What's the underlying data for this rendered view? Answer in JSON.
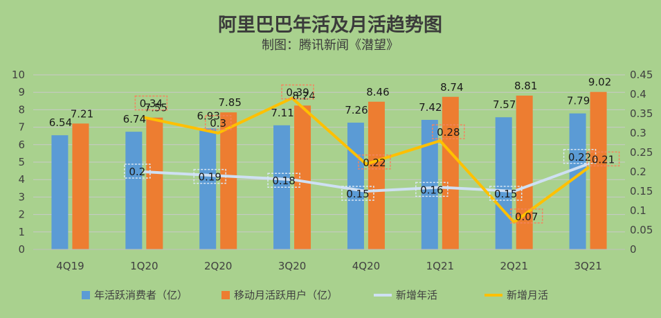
{
  "chart_data": {
    "type": "bar",
    "title": "阿里巴巴年活及月活趋势图",
    "subtitle": "制图：腾讯新闻《潜望》",
    "categories": [
      "4Q19",
      "1Q20",
      "2Q20",
      "3Q20",
      "4Q20",
      "1Q21",
      "2Q21",
      "3Q21"
    ],
    "ylim": [
      0,
      10
    ],
    "yticks": [
      "0",
      "1",
      "2",
      "3",
      "4",
      "5",
      "6",
      "7",
      "8",
      "9",
      "10"
    ],
    "y2lim": [
      0,
      0.45
    ],
    "y2ticks": [
      "0",
      "0.05",
      "0.1",
      "0.15",
      "0.2",
      "0.25",
      "0.3",
      "0.35",
      "0.4",
      "0.45"
    ],
    "grid": true,
    "legend_position": "bottom",
    "series": [
      {
        "name": "年活跃消费者（亿）",
        "type": "bar",
        "axis": "left",
        "color": "#5b9bd5",
        "values": [
          6.54,
          6.74,
          6.93,
          7.11,
          7.26,
          7.42,
          7.57,
          7.79
        ],
        "labels": [
          "6.54",
          "6.74",
          "6.93",
          "7.11",
          "7.26",
          "7.42",
          "7.57",
          "7.79"
        ]
      },
      {
        "name": "移动月活跃用户（亿）",
        "type": "bar",
        "axis": "left",
        "color": "#ed7d31",
        "values": [
          7.21,
          7.55,
          7.85,
          8.24,
          8.46,
          8.74,
          8.81,
          9.02
        ],
        "labels": [
          "7.21",
          "7.55",
          "7.85",
          "8.24",
          "8.46",
          "8.74",
          "8.81",
          "9.02"
        ]
      },
      {
        "name": "新增年活",
        "type": "line",
        "axis": "right",
        "color": "#cfe0f3",
        "values": [
          null,
          0.2,
          0.19,
          0.18,
          0.15,
          0.16,
          0.15,
          0.22
        ],
        "labels": [
          "",
          "0.2",
          "0.19",
          "0.18",
          "0.15",
          "0.16",
          "0.15",
          "0.22"
        ]
      },
      {
        "name": "新增月活",
        "type": "line",
        "axis": "right",
        "color": "#ffc000",
        "values": [
          null,
          0.34,
          0.3,
          0.39,
          0.22,
          0.28,
          0.07,
          0.21
        ],
        "labels": [
          "",
          "0.34",
          "0.3",
          "0.39",
          "0.22",
          "0.28",
          "0.07",
          "0.21"
        ]
      }
    ]
  }
}
